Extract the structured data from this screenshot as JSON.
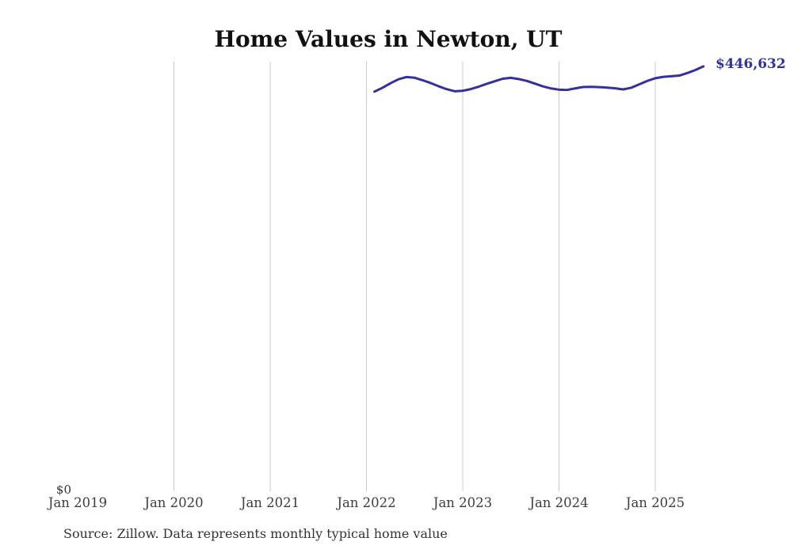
{
  "chart": {
    "title": "Home Values in Newton, UT",
    "end_label": "$446,632",
    "zero_label": "$0",
    "source_note": "Source: Zillow. Data represents monthly typical home value",
    "line_color": "#34309e",
    "grid_color": "#c9c9c9",
    "tick_color": "#3d3d3d",
    "text_color": "#333333",
    "title_color": "#111111"
  },
  "chart_data": {
    "type": "line",
    "title": "Home Values in Newton, UT",
    "xlabel": "",
    "ylabel": "",
    "ylim": [
      0,
      451600
    ],
    "grid": "vertical-yearly",
    "legend": "none",
    "annotations": [
      "$446,632",
      "$0"
    ],
    "x_tick_labels": [
      "Jan 2019",
      "Jan 2020",
      "Jan 2021",
      "Jan 2022",
      "Jan 2023",
      "Jan 2024",
      "Jan 2025"
    ],
    "x_ticks": [
      {
        "label": "Jan 2019",
        "month": "2019-01",
        "gridline": false
      },
      {
        "label": "Jan 2020",
        "month": "2020-01",
        "gridline": true
      },
      {
        "label": "Jan 2021",
        "month": "2021-01",
        "gridline": true
      },
      {
        "label": "Jan 2022",
        "month": "2022-01",
        "gridline": true
      },
      {
        "label": "Jan 2023",
        "month": "2023-01",
        "gridline": true
      },
      {
        "label": "Jan 2024",
        "month": "2024-01",
        "gridline": true
      },
      {
        "label": "Jan 2025",
        "month": "2025-01",
        "gridline": true
      }
    ],
    "x": [
      "2022-02",
      "2022-03",
      "2022-04",
      "2022-05",
      "2022-06",
      "2022-07",
      "2022-08",
      "2022-09",
      "2022-10",
      "2022-11",
      "2022-12",
      "2023-01",
      "2023-02",
      "2023-03",
      "2023-04",
      "2023-05",
      "2023-06",
      "2023-07",
      "2023-08",
      "2023-09",
      "2023-10",
      "2023-11",
      "2023-12",
      "2024-01",
      "2024-02",
      "2024-03",
      "2024-04",
      "2024-05",
      "2024-06",
      "2024-07",
      "2024-08",
      "2024-09",
      "2024-10",
      "2024-11",
      "2024-12",
      "2025-01",
      "2025-02",
      "2025-03",
      "2025-04",
      "2025-05",
      "2025-06",
      "2025-07"
    ],
    "series": [
      {
        "name": "Monthly typical home value",
        "values": [
          419900,
          424000,
          428800,
          433000,
          435400,
          434600,
          432000,
          429000,
          425600,
          422500,
          420300,
          420800,
          422600,
          425200,
          428200,
          430900,
          433600,
          434500,
          433200,
          431200,
          428400,
          425500,
          423300,
          422000,
          421700,
          423300,
          424800,
          425000,
          424700,
          424200,
          423400,
          422300,
          424000,
          427600,
          431200,
          434100,
          435600,
          436200,
          436900,
          439600,
          442800,
          446632
        ]
      }
    ]
  }
}
